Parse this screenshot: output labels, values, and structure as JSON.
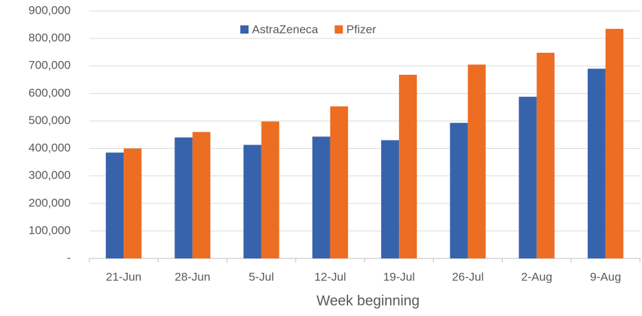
{
  "chart_data": {
    "type": "bar",
    "x_label": "Week beginning",
    "categories": [
      "21-Jun",
      "28-Jun",
      "5-Jul",
      "12-Jul",
      "19-Jul",
      "26-Jul",
      "2-Aug",
      "9-Aug"
    ],
    "series": [
      {
        "name": "AstraZeneca",
        "color": "#3763ad",
        "values": [
          385000,
          440000,
          413000,
          443000,
          430000,
          493000,
          588000,
          690000
        ]
      },
      {
        "name": "Pfizer",
        "color": "#ed6d23",
        "values": [
          400000,
          460000,
          498000,
          553000,
          668000,
          705000,
          748000,
          835000
        ]
      }
    ],
    "ylim": [
      0,
      900000
    ],
    "yticks": [
      {
        "value": 0,
        "label": "-"
      },
      {
        "value": 100000,
        "label": "100,000"
      },
      {
        "value": 200000,
        "label": "200,000"
      },
      {
        "value": 300000,
        "label": "300,000"
      },
      {
        "value": 400000,
        "label": "400,000"
      },
      {
        "value": 500000,
        "label": "500,000"
      },
      {
        "value": 600000,
        "label": "600,000"
      },
      {
        "value": 700000,
        "label": "700,000"
      },
      {
        "value": 800000,
        "label": "800,000"
      },
      {
        "value": 900000,
        "label": "900,000"
      }
    ],
    "grid": true,
    "legend": "top"
  }
}
